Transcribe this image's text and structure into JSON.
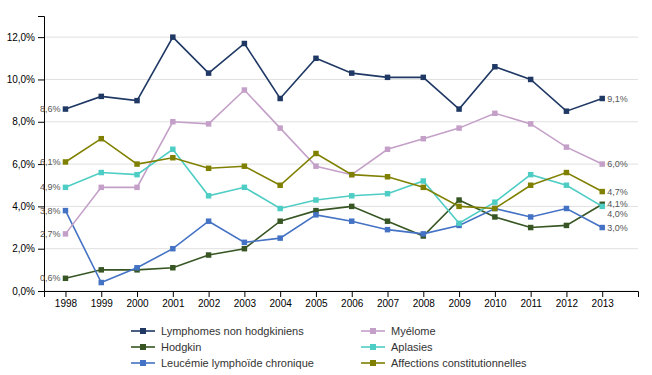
{
  "chart_data": {
    "type": "line",
    "x": [
      1998,
      1999,
      2000,
      2001,
      2002,
      2003,
      2004,
      2005,
      2006,
      2007,
      2008,
      2009,
      2010,
      2011,
      2012,
      2013
    ],
    "series": [
      {
        "name": "Lymphomes non hodgkiniens",
        "color": "#1f3864",
        "marker": "square",
        "values": [
          8.6,
          9.2,
          9.0,
          12.0,
          10.3,
          11.7,
          9.1,
          11.0,
          10.3,
          10.1,
          10.1,
          8.6,
          10.6,
          10.0,
          8.5,
          9.1
        ]
      },
      {
        "name": "Hodgkin",
        "color": "#375623",
        "marker": "square",
        "values": [
          0.6,
          1.0,
          1.0,
          1.1,
          1.7,
          2.0,
          3.3,
          3.8,
          4.0,
          3.3,
          2.6,
          4.3,
          3.5,
          3.0,
          3.1,
          4.1
        ]
      },
      {
        "name": "Leucémie lymphoïde chronique",
        "color": "#4472c4",
        "marker": "square",
        "values": [
          3.8,
          0.4,
          1.1,
          2.0,
          3.3,
          2.3,
          2.5,
          3.6,
          3.3,
          2.9,
          2.7,
          3.1,
          3.9,
          3.5,
          3.9,
          3.0
        ]
      },
      {
        "name": "Myélome",
        "color": "#c4a0c8",
        "marker": "square",
        "values": [
          2.7,
          4.9,
          4.9,
          8.0,
          7.9,
          9.5,
          7.7,
          5.9,
          5.5,
          6.7,
          7.2,
          7.7,
          8.4,
          7.9,
          6.8,
          6.0
        ]
      },
      {
        "name": "Aplasies",
        "color": "#4ecdc4",
        "marker": "square",
        "values": [
          4.9,
          5.6,
          5.5,
          6.7,
          4.5,
          4.9,
          3.9,
          4.3,
          4.5,
          4.6,
          5.2,
          3.2,
          4.2,
          5.5,
          5.0,
          4.0
        ]
      },
      {
        "name": "Affections constitutionnelles",
        "color": "#808000",
        "marker": "square",
        "values": [
          6.1,
          7.2,
          6.0,
          6.3,
          5.8,
          5.9,
          5.0,
          6.5,
          5.5,
          5.4,
          4.9,
          4.0,
          3.9,
          5.0,
          5.6,
          4.7
        ]
      }
    ],
    "annotations": [
      {
        "text": "8,6%",
        "x": 1998,
        "y": 8.6
      },
      {
        "text": "6,1%",
        "x": 1998,
        "y": 6.1
      },
      {
        "text": "4,9%",
        "x": 1998,
        "y": 4.9
      },
      {
        "text": "2,7%",
        "x": 1998,
        "y": 2.7
      },
      {
        "text": "3,8%",
        "x": 1998,
        "y": 3.8
      },
      {
        "text": "0,6%",
        "x": 1998,
        "y": 0.6
      },
      {
        "text": "9,1%",
        "x": 2013,
        "y": 9.1
      },
      {
        "text": "6,0%",
        "x": 2013,
        "y": 6.0
      },
      {
        "text": "4,7%",
        "x": 2013,
        "y": 4.7
      },
      {
        "text": "4,1%",
        "x": 2013,
        "y": 4.1
      },
      {
        "text": "4,0%",
        "x": 2013,
        "y": 4.0
      },
      {
        "text": "3,0%",
        "x": 2013,
        "y": 3.0
      }
    ],
    "xlim": [
      1997.4,
      2014.0
    ],
    "xticks": [
      1998,
      1999,
      2000,
      2001,
      2002,
      2003,
      2004,
      2005,
      2006,
      2007,
      2008,
      2009,
      2010,
      2011,
      2012,
      2013
    ],
    "ylim": [
      0.0,
      13.0
    ],
    "yticks": [
      {
        "value": 0.0,
        "label": "0,0%"
      },
      {
        "value": 2.0,
        "label": "2,0%"
      },
      {
        "value": 4.0,
        "label": "4,0%"
      },
      {
        "value": 6.0,
        "label": "6,0%"
      },
      {
        "value": 8.0,
        "label": "8,0%"
      },
      {
        "value": 10.0,
        "label": "10,0%"
      },
      {
        "value": 12.0,
        "label": "12,0%"
      }
    ],
    "grid": true,
    "legend": "bottom"
  }
}
